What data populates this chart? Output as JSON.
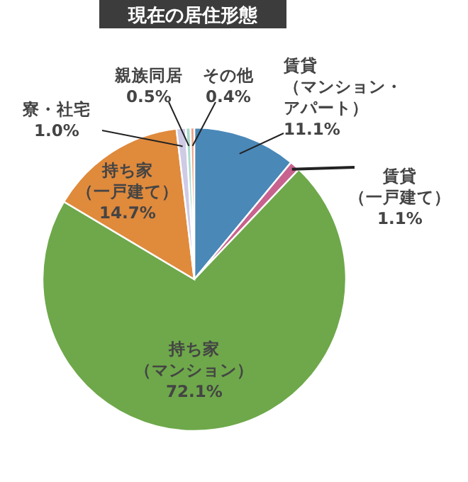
{
  "chart_data": {
    "type": "pie",
    "title": "現在の居住形態",
    "categories": [
      "賃貸（マンション・アパート）",
      "賃貸（一戸建て）",
      "持ち家（マンション）",
      "持ち家（一戸建て）",
      "寮・社宅",
      "親族同居",
      "その他"
    ],
    "value_labels": [
      "11.1%",
      "1.1%",
      "72.1%",
      "14.7%",
      "1.0%",
      "0.5%",
      "0.4%"
    ],
    "values": [
      11.1,
      1.1,
      72.1,
      14.7,
      1.0,
      0.5,
      0.4
    ],
    "colors": [
      "#4a88b8",
      "#c8628e",
      "#6ea84a",
      "#e08a3c",
      "#cfcbe6",
      "#a6dccd",
      "#f0a284"
    ]
  }
}
